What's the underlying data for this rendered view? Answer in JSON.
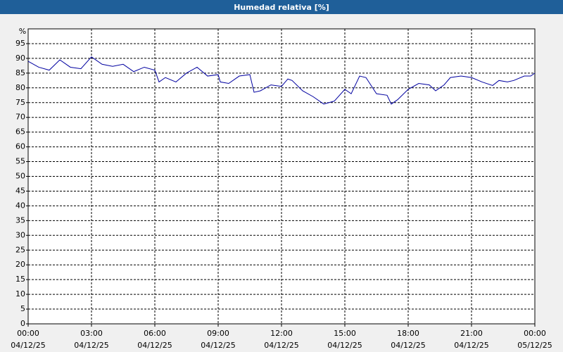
{
  "chart_data": {
    "type": "line",
    "title": "Humedad relativa [%]",
    "y_unit": "%",
    "x": [
      0,
      0.5,
      1.0,
      1.5,
      2.0,
      2.5,
      3.0,
      3.5,
      4.0,
      4.5,
      5.0,
      5.5,
      6.0,
      6.2,
      6.5,
      7.0,
      7.5,
      8.0,
      8.5,
      9.0,
      9.1,
      9.5,
      10.0,
      10.5,
      10.7,
      11.0,
      11.5,
      12.0,
      12.3,
      12.5,
      13.0,
      13.5,
      14.0,
      14.5,
      15.0,
      15.3,
      15.7,
      16.0,
      16.5,
      17.0,
      17.2,
      17.5,
      18.0,
      18.5,
      19.0,
      19.3,
      19.7,
      20.0,
      20.5,
      21.0,
      21.5,
      22.0,
      22.3,
      22.7,
      23.0,
      23.5,
      23.8,
      24.0
    ],
    "series": [
      {
        "name": "Humedad relativa",
        "color": "#0000a0",
        "values": [
          89,
          87,
          86,
          89.5,
          87,
          86.5,
          90.5,
          88,
          87.3,
          88,
          85.5,
          87,
          86,
          82,
          83.5,
          82,
          85,
          87,
          84,
          84.5,
          82,
          81.5,
          84,
          84.5,
          78.5,
          79,
          81,
          80.5,
          83,
          82.5,
          79,
          77,
          74.5,
          75.5,
          79.5,
          78,
          84,
          83.5,
          78,
          77.5,
          74.5,
          76,
          79.5,
          81.5,
          81,
          79,
          81,
          83.5,
          84,
          83.5,
          82,
          80.8,
          82.5,
          82,
          82.5,
          84,
          84,
          85
        ]
      }
    ],
    "xlim": [
      0,
      24
    ],
    "xticks": [
      {
        "value": 0,
        "label": "00:00"
      },
      {
        "value": 3,
        "label": "03:00"
      },
      {
        "value": 6,
        "label": "06:00"
      },
      {
        "value": 9,
        "label": "09:00"
      },
      {
        "value": 12,
        "label": "12:00"
      },
      {
        "value": 15,
        "label": "15:00"
      },
      {
        "value": 18,
        "label": "18:00"
      },
      {
        "value": 21,
        "label": "21:00"
      },
      {
        "value": 24,
        "label": "00:00"
      }
    ],
    "xtick_dates": [
      "04/12/25",
      "04/12/25",
      "04/12/25",
      "04/12/25",
      "04/12/25",
      "04/12/25",
      "04/12/25",
      "04/12/25",
      "05/12/25"
    ],
    "ylim": [
      0,
      100
    ],
    "yticks": [
      0,
      5,
      10,
      15,
      20,
      25,
      30,
      35,
      40,
      45,
      50,
      55,
      60,
      65,
      70,
      75,
      80,
      85,
      90,
      95
    ],
    "grid": true
  }
}
